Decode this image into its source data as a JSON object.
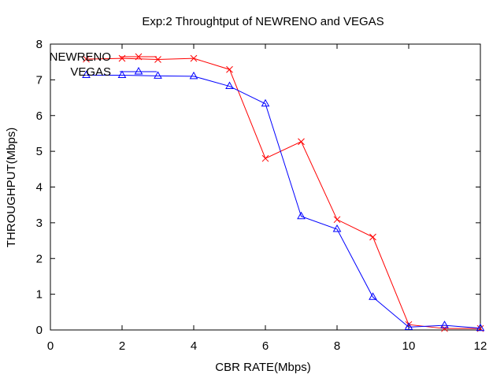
{
  "chart_data": {
    "type": "line",
    "title": "Exp:2 Throughtput of NEWRENO and VEGAS",
    "xlabel": "CBR RATE(Mbps)",
    "ylabel": "THROUGHPUT(Mbps)",
    "xlim": [
      0,
      12
    ],
    "ylim": [
      0,
      8
    ],
    "xticks": [
      0,
      2,
      4,
      6,
      8,
      10,
      12
    ],
    "yticks": [
      0,
      1,
      2,
      3,
      4,
      5,
      6,
      7,
      8
    ],
    "grid": false,
    "legend_position": "top-left",
    "series": [
      {
        "name": "NEWRENO",
        "color": "#ff0000",
        "marker": "x",
        "x": [
          1,
          2,
          3,
          4,
          5,
          6,
          7,
          8,
          9,
          10,
          11,
          12
        ],
        "y": [
          7.58,
          7.6,
          7.57,
          7.6,
          7.29,
          4.8,
          5.27,
          3.09,
          2.6,
          0.15,
          0.04,
          0.04
        ]
      },
      {
        "name": "VEGAS",
        "color": "#0000ff",
        "marker": "triangle",
        "x": [
          1,
          2,
          3,
          4,
          5,
          6,
          7,
          8,
          9,
          10,
          11,
          12
        ],
        "y": [
          7.13,
          7.13,
          7.11,
          7.1,
          6.82,
          6.33,
          3.18,
          2.82,
          0.92,
          0.08,
          0.13,
          0.05
        ]
      }
    ]
  }
}
